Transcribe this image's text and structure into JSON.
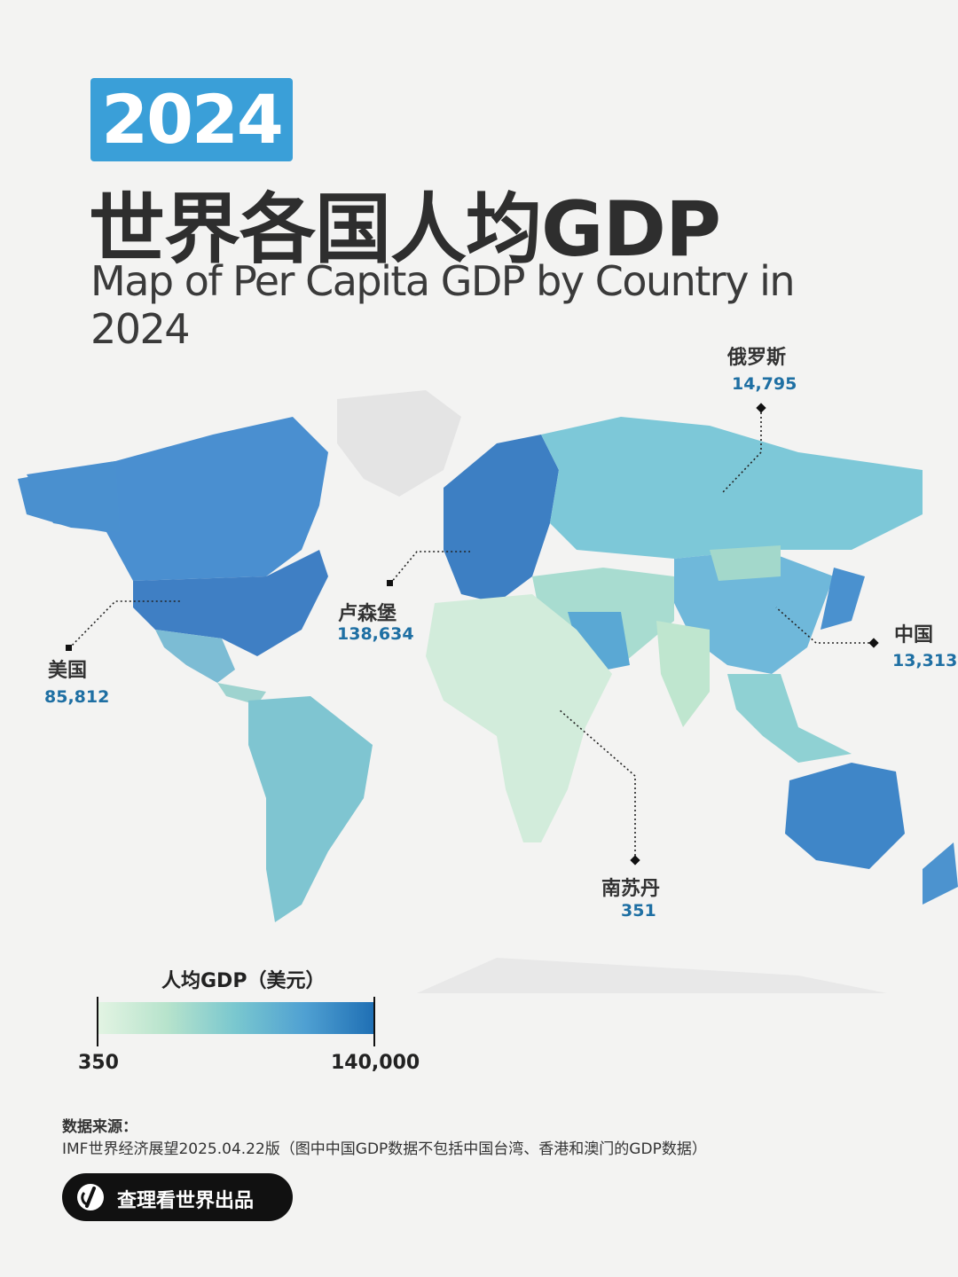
{
  "header": {
    "year": "2024",
    "title_cn": "世界各国人均GDP",
    "title_en": "Map of Per Capita GDP by Country in 2024"
  },
  "map": {
    "type": "choropleth",
    "metric": "人均GDP（美元）",
    "callouts": [
      {
        "id": "russia",
        "name": "俄罗斯",
        "value": "14,795"
      },
      {
        "id": "luxembourg",
        "name": "卢森堡",
        "value": "138,634"
      },
      {
        "id": "usa",
        "name": "美国",
        "value": "85,812"
      },
      {
        "id": "china",
        "name": "中国",
        "value": "13,313"
      },
      {
        "id": "south-sudan",
        "name": "南苏丹",
        "value": "351"
      }
    ],
    "colors": {
      "low": "#e3f4e3",
      "mid_low": "#b7e3cc",
      "mid": "#79c7cf",
      "mid_high": "#4fa0d2",
      "high": "#1f6fb4"
    }
  },
  "legend": {
    "title": "人均GDP（美元）",
    "min": "350",
    "max": "140,000"
  },
  "source": {
    "label": "数据来源：",
    "text": "IMF世界经济展望2025.04.22版（图中中国GDP数据不包括中国台湾、香港和澳门的GDP数据）"
  },
  "brand": {
    "label": "查理看世界出品"
  }
}
